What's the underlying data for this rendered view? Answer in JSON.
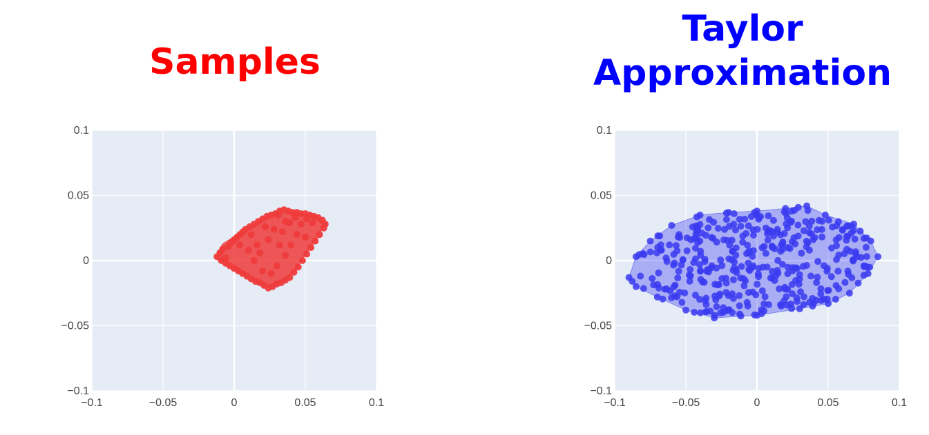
{
  "colors": {
    "plot_bg": "#e5ecf6",
    "grid": "#ffffff",
    "samples": "#ef3b3b",
    "taylor": "#3a3af0"
  },
  "chart_data": [
    {
      "type": "scatter",
      "title": "Samples",
      "title_color": "#ff0000",
      "xlim": [
        -0.1,
        0.1
      ],
      "ylim": [
        -0.1,
        0.1
      ],
      "xticks": [
        "−0.1",
        "−0.05",
        "0",
        "0.05",
        "0.1"
      ],
      "yticks": [
        "−0.1",
        "−0.05",
        "0",
        "0.05",
        "0.1"
      ],
      "grid": true,
      "hull": [
        [
          -0.012,
          0.005
        ],
        [
          -0.008,
          0.013
        ],
        [
          0.008,
          0.024
        ],
        [
          0.02,
          0.032
        ],
        [
          0.033,
          0.038
        ],
        [
          0.045,
          0.037
        ],
        [
          0.058,
          0.034
        ],
        [
          0.064,
          0.028
        ],
        [
          0.058,
          0.016
        ],
        [
          0.05,
          0.004
        ],
        [
          0.043,
          -0.008
        ],
        [
          0.033,
          -0.017
        ],
        [
          0.024,
          -0.021
        ],
        [
          0.015,
          -0.016
        ],
        [
          0.005,
          -0.01
        ],
        [
          -0.006,
          -0.003
        ],
        [
          -0.012,
          0.001
        ]
      ],
      "points": [
        [
          -0.012,
          0.003
        ],
        [
          -0.01,
          0.006
        ],
        [
          -0.008,
          0.009
        ],
        [
          -0.006,
          0.002
        ],
        [
          -0.004,
          0.011
        ],
        [
          -0.002,
          0.014
        ],
        [
          0.0,
          0.016
        ],
        [
          0.002,
          0.018
        ],
        [
          0.004,
          0.02
        ],
        [
          0.006,
          0.022
        ],
        [
          0.008,
          0.024
        ],
        [
          0.011,
          0.026
        ],
        [
          0.014,
          0.028
        ],
        [
          0.017,
          0.03
        ],
        [
          0.02,
          0.032
        ],
        [
          0.023,
          0.034
        ],
        [
          0.026,
          0.035
        ],
        [
          0.029,
          0.036
        ],
        [
          0.032,
          0.038
        ],
        [
          0.035,
          0.039
        ],
        [
          0.038,
          0.038
        ],
        [
          0.041,
          0.037
        ],
        [
          0.044,
          0.037
        ],
        [
          0.047,
          0.036
        ],
        [
          0.05,
          0.036
        ],
        [
          0.053,
          0.035
        ],
        [
          0.056,
          0.034
        ],
        [
          0.059,
          0.033
        ],
        [
          0.062,
          0.031
        ],
        [
          0.064,
          0.028
        ],
        [
          0.063,
          0.025
        ],
        [
          0.06,
          0.02
        ],
        [
          0.057,
          0.015
        ],
        [
          0.054,
          0.01
        ],
        [
          0.051,
          0.005
        ],
        [
          0.048,
          0.0
        ],
        [
          0.045,
          -0.005
        ],
        [
          0.042,
          -0.009
        ],
        [
          0.039,
          -0.013
        ],
        [
          0.036,
          -0.015
        ],
        [
          0.033,
          -0.017
        ],
        [
          0.03,
          -0.018
        ],
        [
          0.027,
          -0.02
        ],
        [
          0.024,
          -0.021
        ],
        [
          0.021,
          -0.019
        ],
        [
          0.018,
          -0.017
        ],
        [
          0.015,
          -0.016
        ],
        [
          0.012,
          -0.014
        ],
        [
          0.009,
          -0.012
        ],
        [
          0.006,
          -0.01
        ],
        [
          0.003,
          -0.008
        ],
        [
          0.0,
          -0.006
        ],
        [
          -0.003,
          -0.004
        ],
        [
          -0.006,
          -0.002
        ],
        [
          -0.009,
          0.0
        ],
        [
          0.031,
          0.035
        ],
        [
          0.036,
          0.03
        ],
        [
          0.047,
          0.028
        ],
        [
          0.055,
          0.029
        ],
        [
          0.051,
          0.032
        ],
        [
          0.043,
          0.033
        ],
        [
          0.039,
          0.029
        ],
        [
          0.044,
          0.02
        ],
        [
          0.05,
          0.018
        ],
        [
          0.034,
          0.022
        ],
        [
          0.04,
          0.012
        ],
        [
          0.036,
          0.004
        ],
        [
          0.03,
          -0.004
        ],
        [
          0.026,
          -0.01
        ],
        [
          0.02,
          -0.008
        ],
        [
          0.014,
          0.0
        ],
        [
          0.01,
          0.008
        ],
        [
          0.016,
          0.012
        ],
        [
          0.024,
          0.016
        ],
        [
          0.028,
          0.024
        ],
        [
          0.022,
          0.026
        ],
        [
          0.012,
          0.02
        ],
        [
          0.004,
          0.012
        ],
        [
          0.018,
          0.006
        ],
        [
          0.032,
          0.012
        ]
      ]
    },
    {
      "type": "scatter",
      "title": [
        "Taylor",
        "Approximation"
      ],
      "title_color": "#0000ff",
      "xlim": [
        -0.1,
        0.1
      ],
      "ylim": [
        -0.1,
        0.1
      ],
      "xticks": [
        "−0.1",
        "−0.05",
        "0",
        "0.05",
        "0.1"
      ],
      "yticks": [
        "−0.1",
        "−0.05",
        "0",
        "0.05",
        "0.1"
      ],
      "grid": true,
      "hull": [
        [
          -0.09,
          -0.013
        ],
        [
          -0.085,
          0.003
        ],
        [
          -0.075,
          0.015
        ],
        [
          -0.06,
          0.027
        ],
        [
          -0.04,
          0.035
        ],
        [
          -0.02,
          0.037
        ],
        [
          0.0,
          0.038
        ],
        [
          0.02,
          0.04
        ],
        [
          0.035,
          0.042
        ],
        [
          0.048,
          0.035
        ],
        [
          0.068,
          0.028
        ],
        [
          0.08,
          0.015
        ],
        [
          0.085,
          0.003
        ],
        [
          0.078,
          -0.01
        ],
        [
          0.065,
          -0.025
        ],
        [
          0.05,
          -0.033
        ],
        [
          0.03,
          -0.037
        ],
        [
          0.0,
          -0.042
        ],
        [
          -0.03,
          -0.044
        ],
        [
          -0.05,
          -0.038
        ],
        [
          -0.07,
          -0.028
        ],
        [
          -0.085,
          -0.02
        ]
      ]
    }
  ]
}
